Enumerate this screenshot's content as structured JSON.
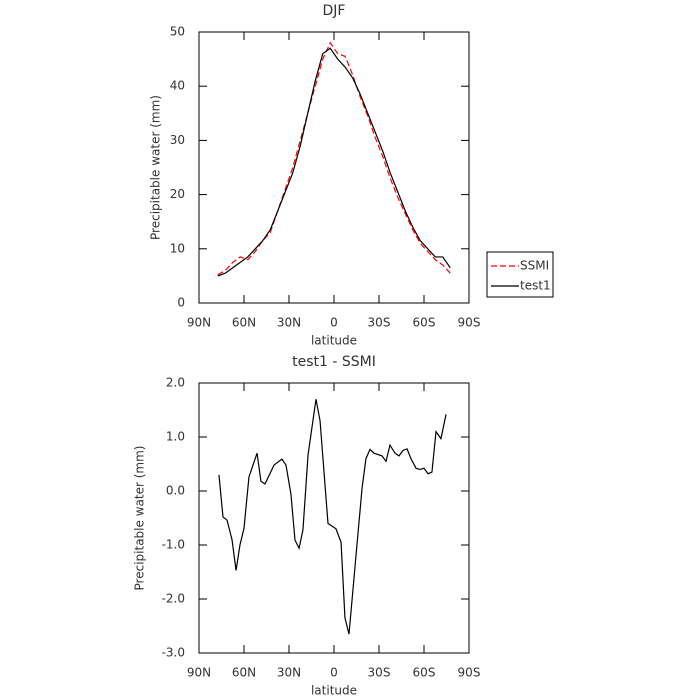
{
  "chart_data": [
    {
      "type": "line",
      "title": "DJF",
      "xlabel": "latitude",
      "ylabel": "Precipitable water (mm)",
      "x": [
        77.5,
        72.5,
        67.5,
        62.5,
        57.5,
        52.5,
        47.5,
        42.5,
        37.5,
        32.5,
        27.5,
        22.5,
        17.5,
        12.5,
        7.5,
        2.5,
        -2.5,
        -7.5,
        -12.5,
        -17.5,
        -22.5,
        -27.5,
        -32.5,
        -37.5,
        -42.5,
        -47.5,
        -52.5,
        -57.5,
        -62.5,
        -67.5,
        -72.5,
        -77.5
      ],
      "series": [
        {
          "name": "SSMI",
          "color": "#ff0000",
          "linestyle": "dashed",
          "values": [
            5.2,
            6,
            7.5,
            8.5,
            8,
            9.5,
            11.5,
            13,
            17,
            21,
            25,
            30,
            35,
            40,
            45,
            48,
            46,
            45.5,
            42,
            38,
            34.5,
            30.5,
            27,
            23,
            19.5,
            16.5,
            13.5,
            11,
            9.5,
            8,
            7,
            5.5
          ]
        },
        {
          "name": "test1",
          "color": "#000000",
          "linestyle": "solid",
          "values": [
            5,
            5.5,
            6.5,
            7.5,
            8.5,
            10,
            11.5,
            13.5,
            17,
            20.5,
            24,
            29,
            35,
            41,
            46,
            47,
            45,
            43.5,
            41.5,
            38.5,
            35,
            31.5,
            28,
            24,
            20.5,
            17,
            14,
            11.5,
            10,
            8.5,
            8.5,
            6.5
          ]
        }
      ],
      "xlim": [
        90,
        -90
      ],
      "xticks": [
        {
          "value": 90,
          "label": "90N"
        },
        {
          "value": 60,
          "label": "60N"
        },
        {
          "value": 30,
          "label": "30N"
        },
        0,
        {
          "value": -30,
          "label": "30S"
        },
        {
          "value": -60,
          "label": "60S"
        },
        {
          "value": -90,
          "label": "90S"
        }
      ],
      "ylim": [
        0,
        50
      ],
      "yticks": [
        0,
        10,
        20,
        30,
        40,
        50
      ],
      "legend": "right"
    },
    {
      "type": "line",
      "title": "test1 - SSMI",
      "xlabel": "latitude",
      "ylabel": "Precipitable water (mm)",
      "x": [
        76.7,
        74,
        71.3,
        68,
        65.3,
        62.7,
        60,
        56.7,
        51.3,
        48.7,
        46,
        40,
        34.7,
        32,
        28.7,
        26,
        23.3,
        20.7,
        17.3,
        12,
        9.3,
        4,
        -1.3,
        -4.7,
        -7.3,
        -10,
        -15.3,
        -18.7,
        -21.3,
        -24,
        -26.7,
        -32,
        -34.7,
        -37.3,
        -40.7,
        -43.3,
        -46,
        -48.7,
        -51.3,
        -54.7,
        -57.3,
        -60,
        -62.7,
        -65.3,
        -68,
        -71.3,
        -74.7
      ],
      "series": [
        {
          "color": "#000000",
          "linestyle": "solid",
          "values": [
            0.3,
            -0.48,
            -0.54,
            -0.9,
            -1.47,
            -1.0,
            -0.69,
            0.26,
            0.7,
            0.18,
            0.13,
            0.48,
            0.59,
            0.48,
            -0.06,
            -0.91,
            -1.06,
            -0.72,
            0.67,
            1.7,
            1.3,
            -0.6,
            -0.7,
            -0.95,
            -2.35,
            -2.65,
            -1.0,
            0.05,
            0.6,
            0.77,
            0.7,
            0.65,
            0.55,
            0.85,
            0.7,
            0.65,
            0.75,
            0.78,
            0.6,
            0.42,
            0.4,
            0.42,
            0.32,
            0.35,
            1.1,
            0.97,
            1.42
          ]
        }
      ],
      "xlim": [
        90,
        -90
      ],
      "xticks": [
        {
          "value": 90,
          "label": "90N"
        },
        {
          "value": 60,
          "label": "60N"
        },
        {
          "value": 30,
          "label": "30N"
        },
        0,
        {
          "value": -30,
          "label": "30S"
        },
        {
          "value": -60,
          "label": "60S"
        },
        {
          "value": -90,
          "label": "90S"
        }
      ],
      "ylim": [
        -3,
        2
      ],
      "yticks": [
        {
          "value": 2,
          "label": "2.0"
        },
        {
          "value": 1,
          "label": "1.0"
        },
        {
          "value": 0,
          "label": "0.0"
        },
        {
          "value": -1,
          "label": "-1.0"
        },
        {
          "value": -2,
          "label": "-2.0"
        },
        {
          "value": -3,
          "label": "-3.0"
        }
      ]
    }
  ]
}
